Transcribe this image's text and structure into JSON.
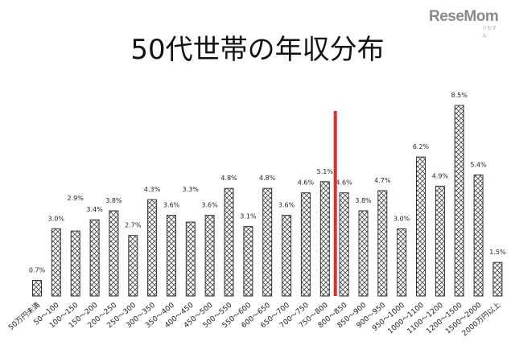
{
  "logo": {
    "text": "ReseMom",
    "subtext": "リセマム"
  },
  "colors": {
    "marker_line": "#d9302a",
    "bar_stroke": "#333333"
  },
  "chart_data": {
    "type": "bar",
    "title": "50代世帯の年収分布",
    "xlabel": "",
    "ylabel": "",
    "ylim": [
      0,
      9
    ],
    "grid": false,
    "legend": "none",
    "bar_pattern": "crosshatch",
    "categories": [
      "50万円未満",
      "50～100",
      "100～150",
      "150～200",
      "200～250",
      "250～300",
      "300～350",
      "350～400",
      "400～450",
      "450～500",
      "500～550",
      "550～600",
      "600～650",
      "650～700",
      "700～750",
      "750～800",
      "800～850",
      "850～900",
      "900～950",
      "950～1000",
      "1000～1100",
      "1100～1200",
      "1200～1500",
      "1500～2000",
      "2000万円以上"
    ],
    "values": [
      0.7,
      3.0,
      2.9,
      3.4,
      3.8,
      2.7,
      4.3,
      3.6,
      3.3,
      3.6,
      4.8,
      3.1,
      4.8,
      3.6,
      4.6,
      5.1,
      4.6,
      3.8,
      4.7,
      3.0,
      6.2,
      4.9,
      8.5,
      5.4,
      1.5
    ],
    "value_labels": [
      "0.7%",
      "3.0%",
      "2.9%",
      "3.4%",
      "3.8%",
      "2.7%",
      "4.3%",
      "3.6%",
      "3.3%",
      "3.6%",
      "4.8%",
      "3.1%",
      "4.8%",
      "3.6%",
      "4.6%",
      "5.1%",
      "4.6%",
      "3.8%",
      "4.7%",
      "3.0%",
      "6.2%",
      "4.9%",
      "8.5%",
      "5.4%",
      "1.5%"
    ],
    "label_above": [
      true,
      true,
      false,
      true,
      true,
      true,
      true,
      true,
      false,
      true,
      true,
      true,
      true,
      true,
      true,
      true,
      true,
      true,
      true,
      true,
      true,
      true,
      true,
      true,
      true
    ],
    "marker_line_between": [
      15,
      16
    ]
  }
}
